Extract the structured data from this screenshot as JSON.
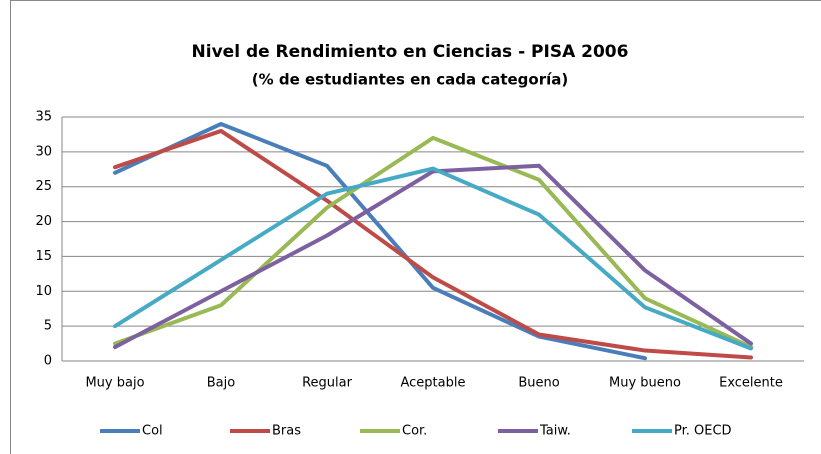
{
  "chart_data": {
    "type": "line",
    "title": "Nivel de Rendimiento en Ciencias - PISA 2006",
    "subtitle": "(% de estudiantes en cada categoría)",
    "categories": [
      "Muy bajo",
      "Bajo",
      "Regular",
      "Aceptable",
      "Bueno",
      "Muy bueno",
      "Excelente"
    ],
    "series": [
      {
        "name": "Col",
        "color": "#4a7ebb",
        "values": [
          27,
          34,
          28,
          10.5,
          3.5,
          0.4,
          null
        ]
      },
      {
        "name": "Bras",
        "color": "#be4b48",
        "values": [
          27.8,
          33,
          23,
          12,
          3.8,
          1.5,
          0.5
        ]
      },
      {
        "name": "Cor.",
        "color": "#98b954",
        "values": [
          2.5,
          8,
          22,
          32,
          26,
          9,
          2
        ]
      },
      {
        "name": "Taiw.",
        "color": "#7d60a0",
        "values": [
          2,
          10,
          18,
          27.2,
          28,
          13,
          2.5
        ]
      },
      {
        "name": "Pr. OECD",
        "color": "#46aac5",
        "values": [
          5,
          14.5,
          24,
          27.6,
          21,
          7.7,
          1.8
        ]
      }
    ],
    "ylim": [
      0,
      35
    ],
    "yticks": [
      0,
      5,
      10,
      15,
      20,
      25,
      30,
      35
    ],
    "grid": true,
    "legend": "bottom"
  }
}
